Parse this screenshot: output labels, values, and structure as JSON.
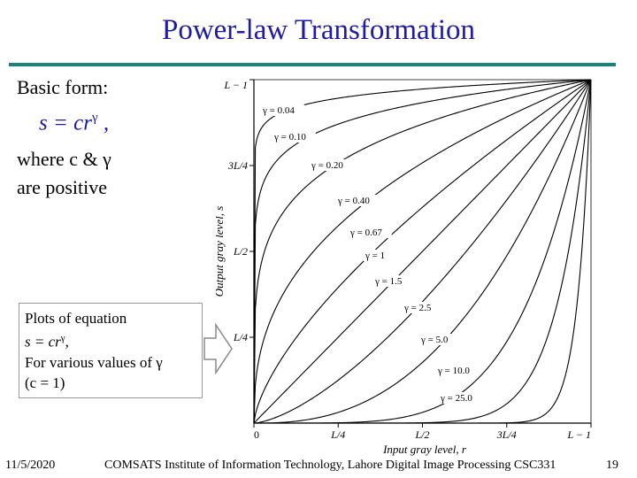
{
  "slide": {
    "title": "Power-law Transformation",
    "basic_form": "Basic form:",
    "formula_main": "s = cr",
    "formula_exp": "γ",
    "formula_tail": " ,",
    "where_line1": "where c & γ",
    "where_line2": "are positive",
    "note_line1": "Plots of equation",
    "note_line2": "s = cr",
    "note_line2_exp": "γ",
    "note_line2_tail": ",",
    "note_line3": "For various values of  γ",
    "note_line4": "(c = 1)",
    "footer_date": "11/5/2020",
    "footer_institute": "COMSATS Institute of Information Technology, Lahore   Digital Image Processing CSC331",
    "footer_page": "19"
  },
  "chart_data": {
    "type": "line",
    "xlabel": "Input gray level, r",
    "ylabel": "Output gray level, s",
    "x_ticks": [
      "0",
      "L/4",
      "L/2",
      "3L/4",
      "L − 1"
    ],
    "y_ticks": [
      "0",
      "L/4",
      "L/2",
      "3L/4",
      "L − 1"
    ],
    "xlim": [
      0,
      1
    ],
    "ylim": [
      0,
      1
    ],
    "grid": false,
    "series": [
      {
        "name": "γ = 0.04",
        "gamma": 0.04
      },
      {
        "name": "γ = 0.10",
        "gamma": 0.1
      },
      {
        "name": "γ = 0.20",
        "gamma": 0.2
      },
      {
        "name": "γ = 0.40",
        "gamma": 0.4
      },
      {
        "name": "γ = 0.67",
        "gamma": 0.67
      },
      {
        "name": "γ = 1",
        "gamma": 1
      },
      {
        "name": "γ = 1.5",
        "gamma": 1.5
      },
      {
        "name": "γ = 2.5",
        "gamma": 2.5
      },
      {
        "name": "γ = 5.0",
        "gamma": 5.0
      },
      {
        "name": "γ = 10.0",
        "gamma": 10.0
      },
      {
        "name": "γ = 25.0",
        "gamma": 25.0
      }
    ]
  }
}
